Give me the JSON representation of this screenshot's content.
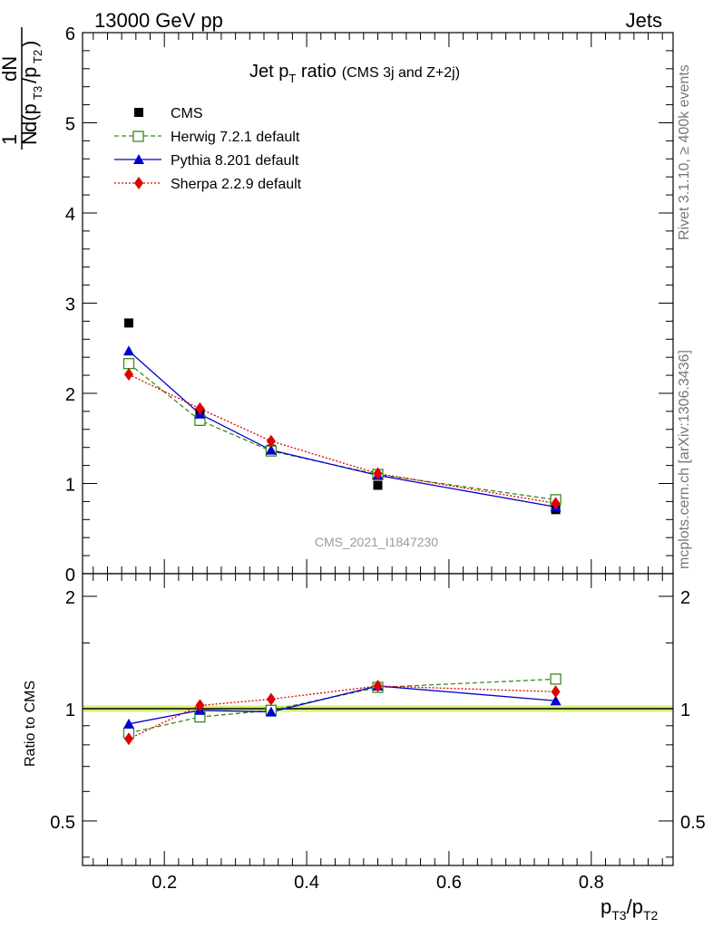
{
  "header": {
    "process": "13000 GeV pp",
    "category": "Jets"
  },
  "sidebar": {
    "rivet": "Rivet 3.1.10, ≥ 400k events",
    "source": "mcplots.cern.ch [arXiv:1306.3436]"
  },
  "chart_data": [
    {
      "type": "scatter",
      "title_main": "Jet p",
      "title_sub": "T",
      "title_rest": " ratio",
      "title_note": "(CMS 3j and Z+2j)",
      "watermark": "CMS_2021_I1847230",
      "ylabel": "1/N dN/d(pT3/pT2)",
      "ylim": [
        0,
        6
      ],
      "yticks": [
        0,
        1,
        2,
        3,
        4,
        5,
        6
      ],
      "xlim": [
        0.085,
        0.915
      ],
      "legend_position": "top-left",
      "x": [
        0.15,
        0.25,
        0.35,
        0.5,
        0.75
      ],
      "series": [
        {
          "name": "CMS",
          "color": "#000000",
          "marker": "square",
          "values": [
            2.78,
            1.79,
            1.38,
            0.98,
            0.71
          ]
        },
        {
          "name": "Herwig 7.2.1 default",
          "color": "#3a8a1e",
          "marker": "open-square",
          "dash": "dashed",
          "values": [
            2.33,
            1.7,
            1.36,
            1.1,
            0.82
          ]
        },
        {
          "name": "Pythia 8.201 default",
          "color": "#0000cc",
          "marker": "triangle",
          "dash": "solid",
          "values": [
            2.47,
            1.77,
            1.37,
            1.09,
            0.74
          ]
        },
        {
          "name": "Sherpa 2.2.9 default",
          "color": "#e00000",
          "marker": "diamond",
          "dash": "dotted",
          "values": [
            2.21,
            1.83,
            1.47,
            1.11,
            0.78
          ]
        }
      ]
    },
    {
      "type": "scatter",
      "ylabel": "Ratio to CMS",
      "xlabel_main": "p",
      "xlabel_sub1": "T3",
      "xlabel_mid": "/p",
      "xlabel_sub2": "T2",
      "ylim": [
        0.38,
        2.3
      ],
      "ytick_labels": [
        "0.5",
        "1",
        "2"
      ],
      "ytick_values": [
        0.5,
        1,
        2
      ],
      "xticks": [
        0.2,
        0.4,
        0.6,
        0.8
      ],
      "xtick_labels": [
        "0.2",
        "0.4",
        "0.6",
        "0.8"
      ],
      "x": [
        0.15,
        0.25,
        0.35,
        0.5,
        0.75
      ],
      "series": [
        {
          "name": "Herwig 7.2.1 default",
          "color": "#3a8a1e",
          "marker": "open-square",
          "dash": "dashed",
          "values": [
            0.86,
            0.95,
            0.99,
            1.14,
            1.2
          ]
        },
        {
          "name": "Pythia 8.201 default",
          "color": "#0000cc",
          "marker": "triangle",
          "dash": "solid",
          "values": [
            0.91,
            0.99,
            0.98,
            1.15,
            1.05
          ]
        },
        {
          "name": "Sherpa 2.2.9 default",
          "color": "#e00000",
          "marker": "diamond",
          "dash": "dotted",
          "values": [
            0.83,
            1.02,
            1.06,
            1.15,
            1.11
          ]
        }
      ]
    }
  ]
}
